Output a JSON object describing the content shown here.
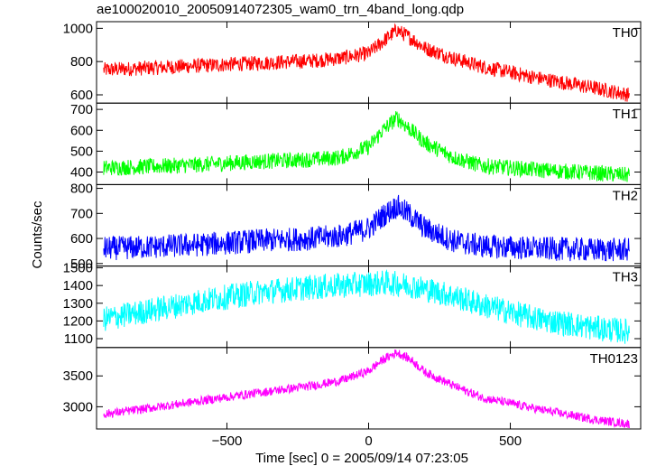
{
  "figure": {
    "title": "ae100020010_20050914072305_wam0_trn_4band_long.qdp"
  },
  "chart_data": {
    "type": "line",
    "title": "ae100020010_20050914072305_wam0_trn_4band_long.qdp",
    "xlabel": "Time [sec] 0 = 2005/09/14 07:23:05",
    "ylabel": "Counts/sec",
    "xlim": [
      -960,
      960
    ],
    "xticks": [
      -500,
      0,
      500
    ],
    "x_anchors": [
      -935,
      -800,
      -600,
      -400,
      -200,
      -100,
      0,
      50,
      100,
      150,
      200,
      300,
      400,
      600,
      800,
      920
    ],
    "grid": false,
    "panels": [
      {
        "name": "TH0",
        "color": "#ff0000",
        "ylim": [
          550,
          1040
        ],
        "yticks": [
          600,
          800,
          1000
        ],
        "noise": 28,
        "trend": [
          750,
          760,
          775,
          790,
          805,
          820,
          850,
          920,
          990,
          940,
          880,
          820,
          770,
          700,
          640,
          600
        ]
      },
      {
        "name": "TH1",
        "color": "#00ff00",
        "ylim": [
          340,
          730
        ],
        "yticks": [
          400,
          500,
          600,
          700
        ],
        "noise": 24,
        "trend": [
          420,
          425,
          435,
          450,
          460,
          470,
          520,
          600,
          660,
          600,
          540,
          470,
          430,
          410,
          395,
          385
        ]
      },
      {
        "name": "TH2",
        "color": "#0000ff",
        "ylim": [
          490,
          815
        ],
        "yticks": [
          500,
          600,
          700,
          800
        ],
        "noise": 30,
        "trend": [
          560,
          565,
          575,
          590,
          600,
          610,
          640,
          690,
          730,
          690,
          640,
          590,
          570,
          560,
          555,
          555
        ]
      },
      {
        "name": "TH3",
        "color": "#00ffff",
        "ylim": [
          1050,
          1510
        ],
        "yticks": [
          1100,
          1200,
          1300,
          1400,
          1500
        ],
        "noise": 45,
        "trend": [
          1210,
          1250,
          1310,
          1360,
          1390,
          1400,
          1410,
          1415,
          1410,
          1400,
          1380,
          1340,
          1290,
          1210,
          1160,
          1140
        ]
      },
      {
        "name": "TH0123",
        "color": "#ff00ff",
        "ylim": [
          2640,
          3960
        ],
        "yticks": [
          3000,
          3500
        ],
        "noise": 45,
        "trend": [
          2880,
          2960,
          3090,
          3220,
          3340,
          3420,
          3580,
          3760,
          3880,
          3760,
          3560,
          3340,
          3150,
          2960,
          2790,
          2720
        ]
      }
    ]
  }
}
